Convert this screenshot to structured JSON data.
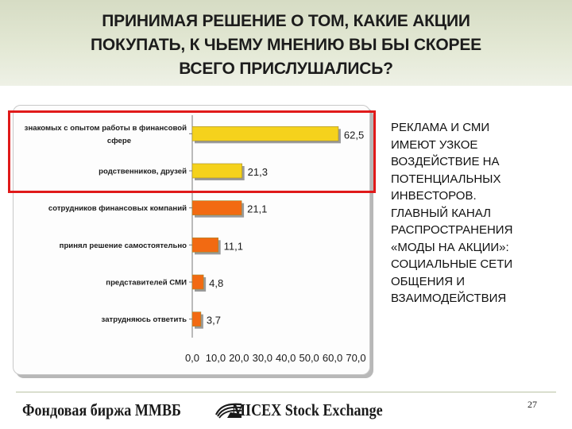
{
  "slide": {
    "title": "ПРИНИМАЯ РЕШЕНИЕ О ТОМ, КАКИЕ АКЦИИ\nПОКУПАТЬ, К ЧЬЕМУ МНЕНИЮ ВЫ БЫ СКОРЕЕ\nВСЕГО ПРИСЛУШАЛИСЬ?",
    "side_note": "РЕКЛАМА И СМИ\nИМЕЮТ УЗКОЕ\nВОЗДЕЙСТВИЕ НА\nПОТЕНЦИАЛЬНЫХ\nИНВЕСТОРОВ.\nГЛАВНЫЙ КАНАЛ\nРАСПРОСТРАНЕНИЯ\n«МОДЫ НА АКЦИИ»:\nСОЦИАЛЬНЫЕ СЕТИ\nОБЩЕНИЯ И\nВЗАИМОДЕЙСТВИЯ",
    "page_number": "27",
    "footer_logo_ru": "Фондовая биржа ММВБ",
    "footer_logo_en": "MICEX Stock Exchange"
  },
  "colors": {
    "highlight_bar": "#f5d21c",
    "other_bar": "#f26a12",
    "highlight_box": "#e01a1a"
  },
  "chart_data": {
    "type": "bar",
    "orientation": "horizontal",
    "categories": [
      "знакомых с опытом работы в финансовой сфере",
      "родственников, друзей",
      "сотрудников финансовых компаний",
      "принял решение самостоятельно",
      "представителей СМИ",
      "затрудняюсь ответить"
    ],
    "category_lines": [
      [
        "знакомых с опытом работы в финансовой",
        "сфере"
      ],
      [
        "родственников, друзей"
      ],
      [
        "сотрудников финансовых компаний"
      ],
      [
        "принял решение самостоятельно"
      ],
      [
        "представителей СМИ"
      ],
      [
        "затрудняюсь ответить"
      ]
    ],
    "values": [
      62.5,
      21.3,
      21.1,
      11.1,
      4.8,
      3.7
    ],
    "value_labels": [
      "62,5",
      "21,3",
      "21,1",
      "11,1",
      "4,8",
      "3,7"
    ],
    "bar_colors": [
      "#f5d21c",
      "#f5d21c",
      "#f26a12",
      "#f26a12",
      "#f26a12",
      "#f26a12"
    ],
    "xlim": [
      0,
      70
    ],
    "x_ticks": [
      "0,0",
      "10,0",
      "20,0",
      "30,0",
      "40,0",
      "50,0",
      "60,0",
      "70,0"
    ],
    "x_tick_values": [
      0,
      10,
      20,
      30,
      40,
      50,
      60,
      70
    ],
    "grid": false,
    "legend": "none",
    "highlighted_categories": [
      "знакомых с опытом работы в финансовой сфере",
      "родственников, друзей"
    ]
  }
}
